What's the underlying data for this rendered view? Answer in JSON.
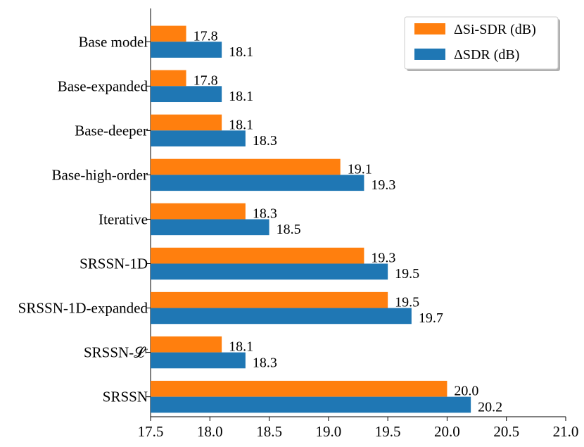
{
  "chart_data": {
    "type": "bar",
    "orientation": "horizontal",
    "categories": [
      "Base model",
      "Base-expanded",
      "Base-deeper",
      "Base-high-order",
      "Iterative",
      "SRSSN-1D",
      "SRSSN-1D-expanded",
      "SRSSN-𝓛ʳ",
      "SRSSN"
    ],
    "series": [
      {
        "name": "ΔSi-SDR (dB)",
        "color": "#ff7f0e",
        "values": [
          17.8,
          17.8,
          18.1,
          19.1,
          18.3,
          19.3,
          19.5,
          18.1,
          20.0
        ],
        "labels": [
          "17.8",
          "17.8",
          "18.1",
          "19.1",
          "18.3",
          "19.3",
          "19.5",
          "18.1",
          "20.0"
        ]
      },
      {
        "name": "ΔSDR (dB)",
        "color": "#1f77b4",
        "values": [
          18.1,
          18.1,
          18.3,
          19.3,
          18.5,
          19.5,
          19.7,
          18.3,
          20.2
        ],
        "labels": [
          "18.1",
          "18.1",
          "18.3",
          "19.3",
          "18.5",
          "19.5",
          "19.7",
          "18.3",
          "20.2"
        ]
      }
    ],
    "xlim": [
      17.5,
      21.0
    ],
    "xticks": [
      "17.5",
      "18.0",
      "18.5",
      "19.0",
      "19.5",
      "20.0",
      "20.5",
      "21.0"
    ],
    "title": "",
    "xlabel": "",
    "ylabel": "",
    "grid": false,
    "legend_position": "top-right"
  }
}
